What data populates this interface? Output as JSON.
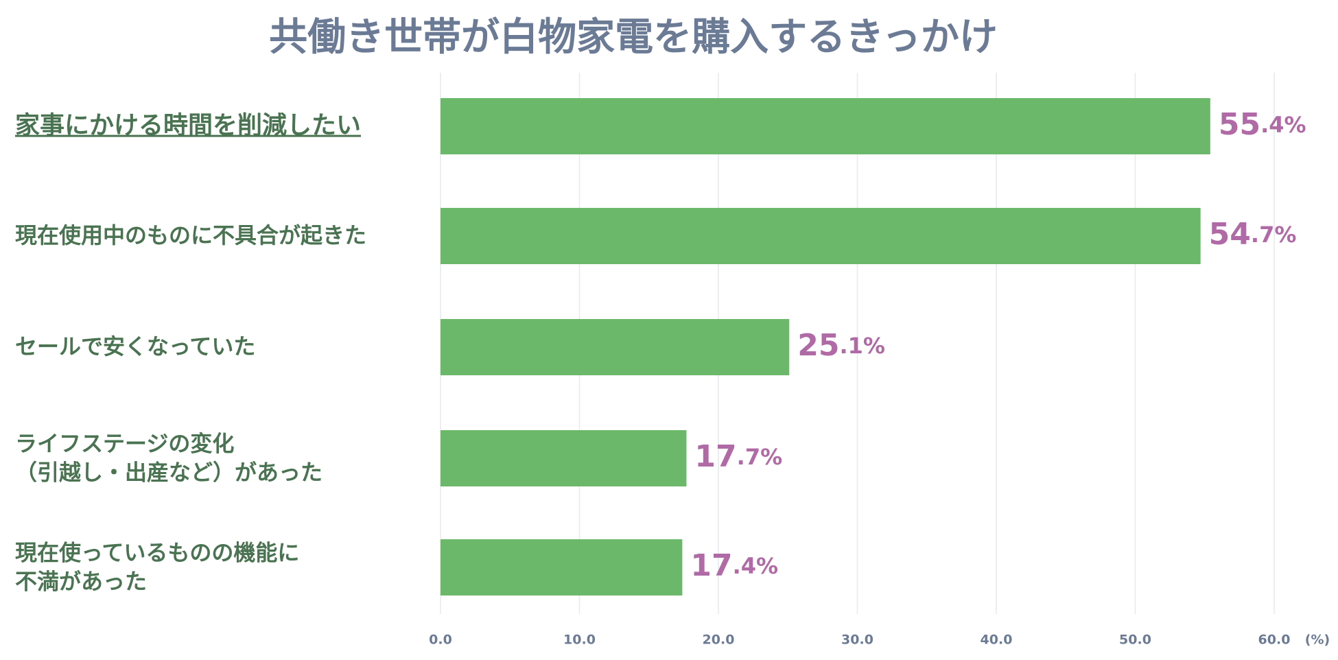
{
  "chart_data": {
    "type": "barh",
    "title": "共働き世帯が白物家電を購入するきっかけ",
    "categories": [
      "家事にかける時間を削減したい",
      "現在使用中のものに不具合が起きた",
      "セールで安くなっていた",
      "ライフステージの変化\n（引越し・出産など）があった",
      "現在使っているものの機能に\n不満があった"
    ],
    "values": [
      55.4,
      54.7,
      25.1,
      17.7,
      17.4
    ],
    "value_labels": [
      "55.4%",
      "54.7%",
      "25.1%",
      "17.7%",
      "17.4%"
    ],
    "color": "#6cb86a",
    "xlabel": "(%)",
    "xlim": [
      0,
      60
    ],
    "xticks": [
      {
        "value": 0,
        "label": "0.0"
      },
      {
        "value": 10,
        "label": "10.0"
      },
      {
        "value": 20,
        "label": "20.0"
      },
      {
        "value": 30,
        "label": "30.0"
      },
      {
        "value": 40,
        "label": "40.0"
      },
      {
        "value": 50,
        "label": "50.0"
      },
      {
        "value": 60,
        "label": "60.0"
      }
    ],
    "grid": true
  }
}
